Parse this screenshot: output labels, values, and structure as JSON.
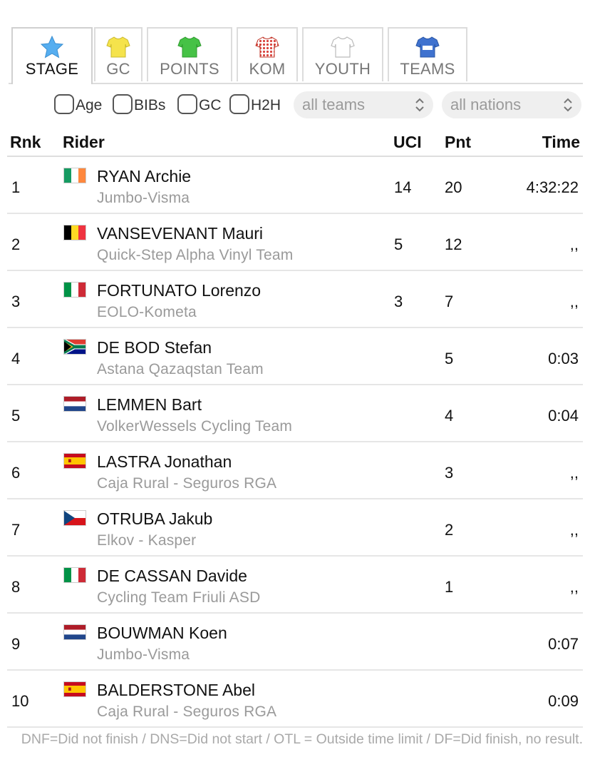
{
  "tabs": [
    {
      "label": "STAGE",
      "icon": "star-icon",
      "color": "#4aa3e8",
      "active": true
    },
    {
      "label": "GC",
      "icon": "yellow-jersey-icon",
      "color": "#f2e14a"
    },
    {
      "label": "POINTS",
      "icon": "green-jersey-icon",
      "color": "#3fbf3f"
    },
    {
      "label": "KOM",
      "icon": "polka-jersey-icon",
      "color": "#d9534f"
    },
    {
      "label": "YOUTH",
      "icon": "white-jersey-icon",
      "color": "#ffffff"
    },
    {
      "label": "TEAMS",
      "icon": "team-jersey-icon",
      "color": "#3d6fc9"
    }
  ],
  "filters": {
    "checkboxes": [
      "Age",
      "BIBs",
      "GC",
      "H2H"
    ],
    "teams_select": "all teams",
    "nations_select": "all nations"
  },
  "columns": {
    "rank": "Rnk",
    "rider": "Rider",
    "uci": "UCI",
    "pnt": "Pnt",
    "time": "Time"
  },
  "rows": [
    {
      "rank": "1",
      "flag": "ireland-flag-icon",
      "name": "RYAN Archie",
      "team": "Jumbo-Visma",
      "uci": "14",
      "pnt": "20",
      "time": "4:32:22"
    },
    {
      "rank": "2",
      "flag": "belgium-flag-icon",
      "name": "VANSEVENANT Mauri",
      "team": "Quick-Step Alpha Vinyl Team",
      "uci": "5",
      "pnt": "12",
      "time": ",,"
    },
    {
      "rank": "3",
      "flag": "italy-flag-icon",
      "name": "FORTUNATO Lorenzo",
      "team": "EOLO-Kometa",
      "uci": "3",
      "pnt": "7",
      "time": ",,"
    },
    {
      "rank": "4",
      "flag": "south-africa-flag-icon",
      "name": "DE BOD Stefan",
      "team": "Astana Qazaqstan Team",
      "uci": "",
      "pnt": "5",
      "time": "0:03"
    },
    {
      "rank": "5",
      "flag": "netherlands-flag-icon",
      "name": "LEMMEN Bart",
      "team": "VolkerWessels Cycling Team",
      "uci": "",
      "pnt": "4",
      "time": "0:04"
    },
    {
      "rank": "6",
      "flag": "spain-flag-icon",
      "name": "LASTRA Jonathan",
      "team": "Caja Rural - Seguros RGA",
      "uci": "",
      "pnt": "3",
      "time": ",,"
    },
    {
      "rank": "7",
      "flag": "czech-flag-icon",
      "name": "OTRUBA Jakub",
      "team": "Elkov - Kasper",
      "uci": "",
      "pnt": "2",
      "time": ",,"
    },
    {
      "rank": "8",
      "flag": "italy-flag-icon",
      "name": "DE CASSAN Davide",
      "team": "Cycling Team Friuli ASD",
      "uci": "",
      "pnt": "1",
      "time": ",,"
    },
    {
      "rank": "9",
      "flag": "netherlands-flag-icon",
      "name": "BOUWMAN Koen",
      "team": "Jumbo-Visma",
      "uci": "",
      "pnt": "",
      "time": "0:07"
    },
    {
      "rank": "10",
      "flag": "spain-flag-icon",
      "name": "BALDERSTONE Abel",
      "team": "Caja Rural - Seguros RGA",
      "uci": "",
      "pnt": "",
      "time": "0:09"
    }
  ],
  "footnote": "DNF=Did not finish / DNS=Did not start / OTL = Outside time limit / DF=Did finish, no result."
}
